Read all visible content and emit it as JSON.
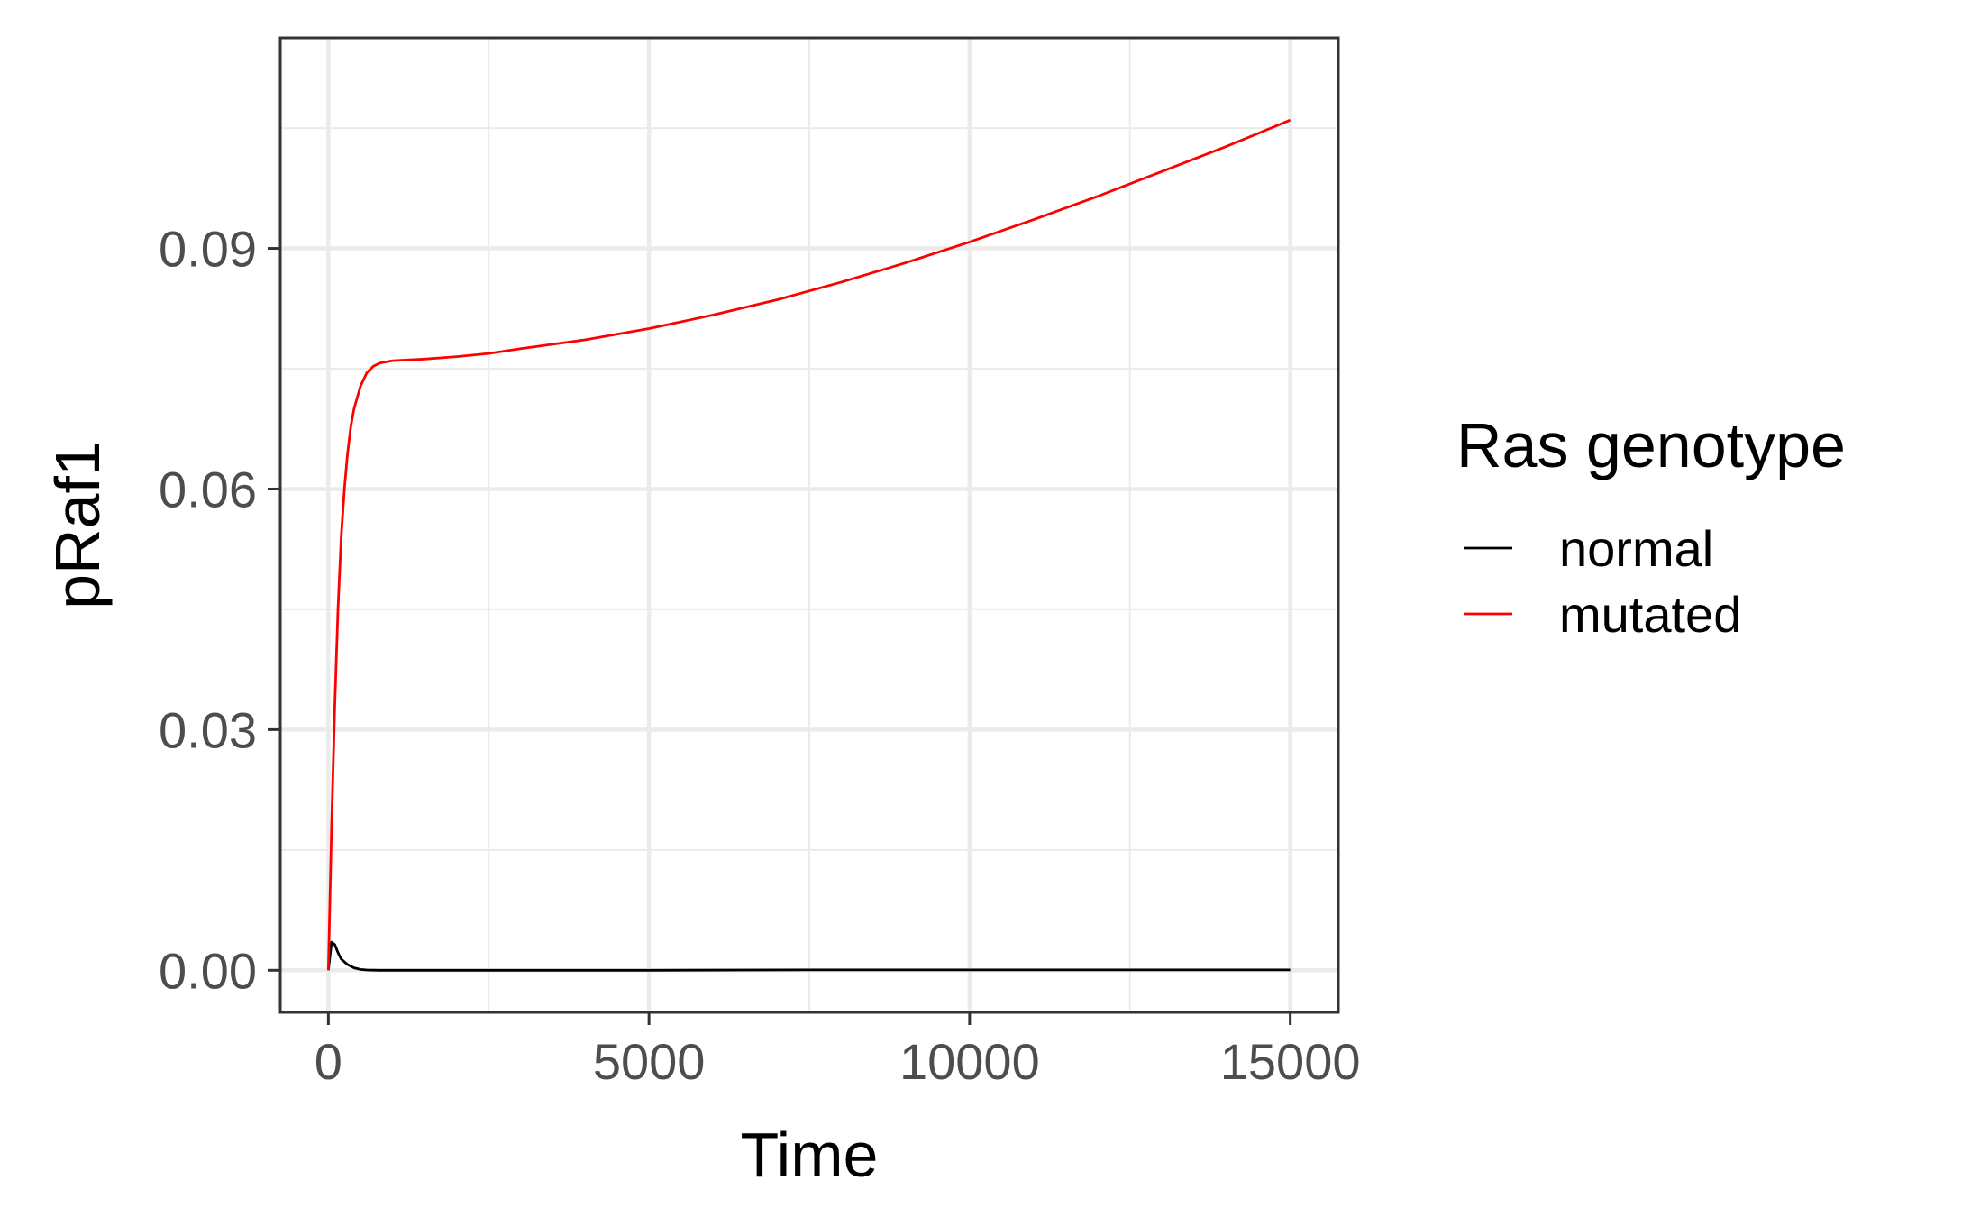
{
  "chart_data": {
    "type": "line",
    "title": "",
    "xlabel": "Time",
    "ylabel": "pRaf1",
    "xlim": [
      -750,
      15750
    ],
    "ylim": [
      -0.00525,
      0.11625
    ],
    "x_ticks": [
      0,
      5000,
      10000,
      15000
    ],
    "x_tick_labels": [
      "0",
      "5000",
      "10000",
      "15000"
    ],
    "y_ticks": [
      0,
      0.03,
      0.06,
      0.09
    ],
    "y_tick_labels": [
      "0.00",
      "0.03",
      "0.06",
      "0.09"
    ],
    "x_minor_gridlines": [
      2500,
      7500,
      12500
    ],
    "y_minor_gridlines": [
      0.015,
      0.045,
      0.075,
      0.105
    ],
    "grid": true,
    "legend": {
      "title": "Ras genotype",
      "position": "right"
    },
    "series": [
      {
        "name": "normal",
        "color": "#000000",
        "x": [
          0,
          50,
          100,
          150,
          200,
          300,
          400,
          500,
          600,
          800,
          1000,
          2000,
          5000,
          7500,
          10000,
          12500,
          15000
        ],
        "y": [
          0,
          0.0035,
          0.0032,
          0.0022,
          0.0014,
          0.0007,
          0.0003,
          0.0001,
          3e-05,
          0,
          0,
          0,
          0,
          5e-05,
          5e-05,
          5e-05,
          5e-05
        ]
      },
      {
        "name": "mutated",
        "color": "#ff0000",
        "x": [
          0,
          50,
          100,
          150,
          200,
          250,
          300,
          350,
          400,
          500,
          600,
          700,
          800,
          1000,
          1500,
          2000,
          2500,
          3000,
          4000,
          5000,
          6000,
          7000,
          8000,
          9000,
          10000,
          11000,
          12000,
          13000,
          14000,
          15000
        ],
        "y": [
          0,
          0.018,
          0.033,
          0.045,
          0.054,
          0.06,
          0.0645,
          0.0678,
          0.07,
          0.0728,
          0.0745,
          0.0753,
          0.0757,
          0.076,
          0.0762,
          0.0765,
          0.0769,
          0.0775,
          0.0786,
          0.08,
          0.0817,
          0.0836,
          0.0858,
          0.0882,
          0.0908,
          0.0936,
          0.0965,
          0.0996,
          0.1027,
          0.106
        ]
      }
    ]
  }
}
